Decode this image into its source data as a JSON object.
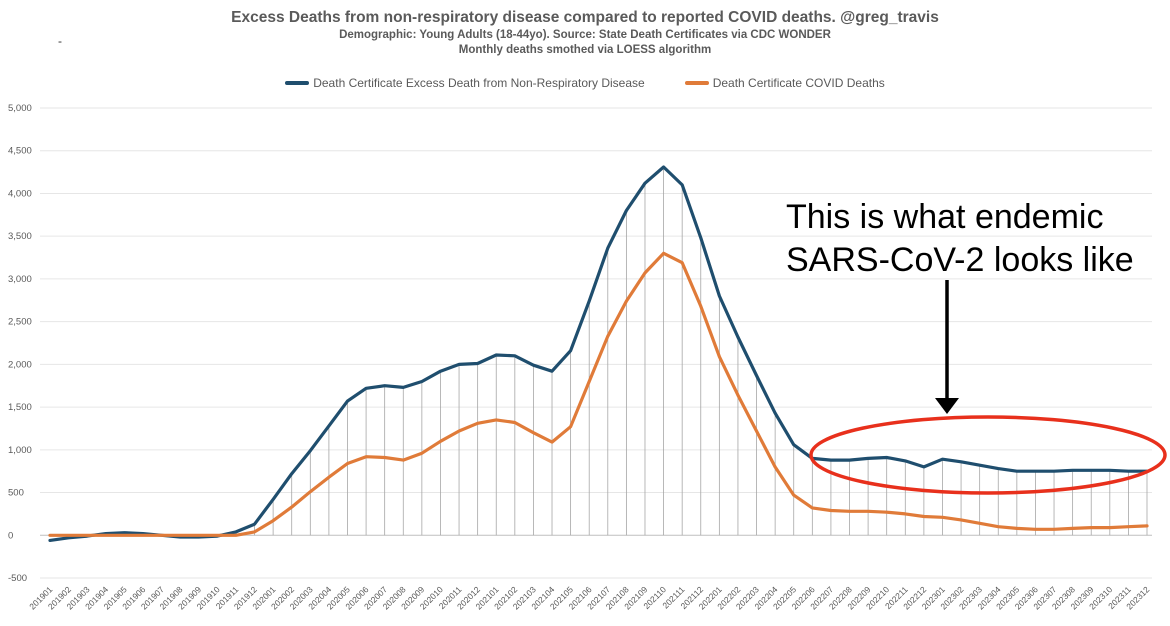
{
  "chart_data": {
    "type": "line",
    "title": "Excess Deaths from non-respiratory disease compared to reported COVID deaths.  @greg_travis",
    "subtitle_lines": [
      "Demographic: Young Adults (18-44yo).  Source: State Death Certificates via CDC WONDER",
      "Monthly deaths smothed via LOESS algorithm"
    ],
    "stray_mark": "-",
    "xlabel": "",
    "ylabel": "",
    "ylim": [
      -500,
      5000
    ],
    "yticks": [
      "-500",
      "0",
      "500",
      "1,000",
      "1,500",
      "2,000",
      "2,500",
      "3,000",
      "3,500",
      "4,000",
      "4,500",
      "5,000"
    ],
    "ytick_values": [
      -500,
      0,
      500,
      1000,
      1500,
      2000,
      2500,
      3000,
      3500,
      4000,
      4500,
      5000
    ],
    "legend_position": "top-center",
    "x": [
      "201901",
      "201902",
      "201903",
      "201904",
      "201905",
      "201906",
      "201907",
      "201908",
      "201909",
      "201910",
      "201911",
      "201912",
      "202001",
      "202002",
      "202003",
      "202004",
      "202005",
      "202006",
      "202007",
      "202008",
      "202009",
      "202010",
      "202011",
      "202012",
      "202101",
      "202102",
      "202103",
      "202104",
      "202105",
      "202106",
      "202107",
      "202108",
      "202109",
      "202110",
      "202111",
      "202112",
      "202201",
      "202202",
      "202203",
      "202204",
      "202205",
      "202206",
      "202207",
      "202208",
      "202209",
      "202210",
      "202211",
      "202212",
      "202301",
      "202302",
      "202303",
      "202304",
      "202305",
      "202306",
      "202307",
      "202308",
      "202309",
      "202310",
      "202311",
      "202312"
    ],
    "series": [
      {
        "name": "Death Certificate Excess Death from Non-Respiratory Disease",
        "color": "#1f4e6e",
        "values": [
          -60,
          -30,
          -10,
          20,
          30,
          20,
          0,
          -20,
          -20,
          -10,
          40,
          130,
          420,
          720,
          990,
          1280,
          1570,
          1720,
          1750,
          1730,
          1800,
          1920,
          2000,
          2010,
          2110,
          2100,
          1990,
          1920,
          2160,
          2740,
          3360,
          3800,
          4120,
          4310,
          4100,
          3480,
          2800,
          2320,
          1870,
          1430,
          1060,
          900,
          880,
          880,
          900,
          910,
          870,
          800,
          890,
          860,
          820,
          780,
          750,
          750,
          750,
          760,
          760,
          760,
          750,
          750
        ]
      },
      {
        "name": "Death Certificate COVID Deaths",
        "color": "#e07b39",
        "values": [
          0,
          0,
          0,
          0,
          0,
          0,
          0,
          0,
          0,
          0,
          0,
          40,
          170,
          330,
          510,
          680,
          840,
          920,
          910,
          880,
          960,
          1100,
          1220,
          1310,
          1350,
          1320,
          1200,
          1090,
          1270,
          1800,
          2330,
          2740,
          3070,
          3300,
          3190,
          2680,
          2090,
          1640,
          1220,
          800,
          470,
          320,
          290,
          280,
          280,
          270,
          250,
          220,
          210,
          180,
          140,
          100,
          80,
          70,
          70,
          80,
          90,
          90,
          100,
          110
        ]
      }
    ],
    "annotation": {
      "text_line1": "This is what endemic",
      "text_line2": "SARS-CoV-2 looks like",
      "arrow_color": "#000000",
      "ellipse_color": "#e8301c"
    }
  }
}
